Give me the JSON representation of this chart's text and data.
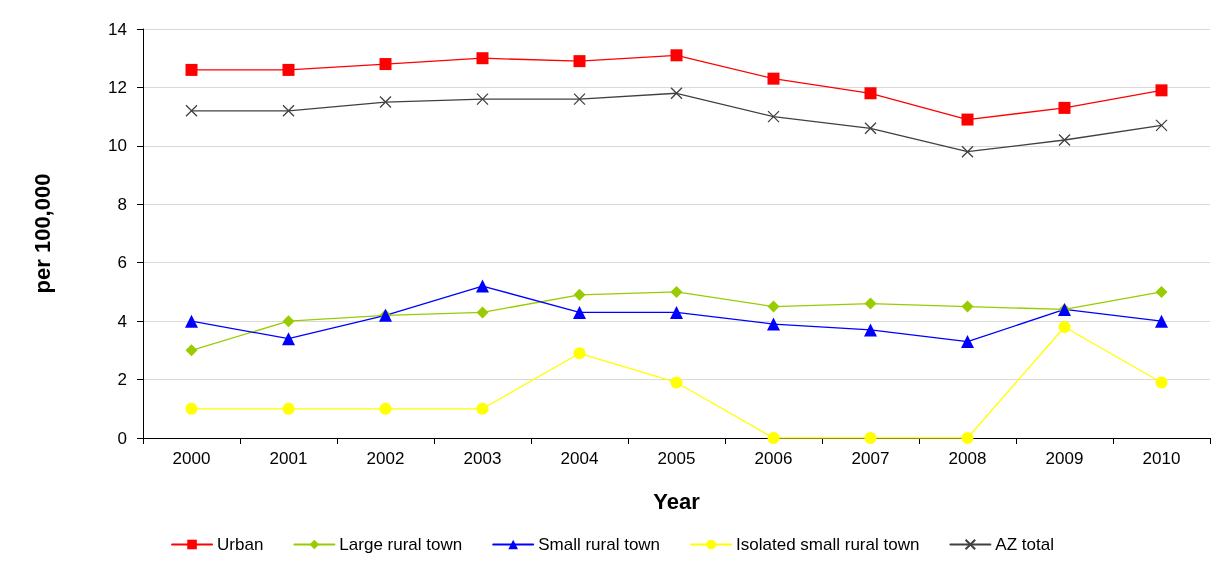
{
  "chart_data": {
    "type": "line",
    "xlabel": "Year",
    "ylabel": "per 100,000",
    "categories": [
      "2000",
      "2001",
      "2002",
      "2003",
      "2004",
      "2005",
      "2006",
      "2007",
      "2008",
      "2009",
      "2010"
    ],
    "ylim": [
      0,
      14
    ],
    "yticks": [
      0,
      2,
      4,
      6,
      8,
      10,
      12,
      14
    ],
    "grid": "y",
    "legend": "bottom",
    "series": [
      {
        "name": "Urban",
        "color": "#ff0000",
        "marker": "square",
        "values": [
          12.6,
          12.6,
          12.8,
          13.0,
          12.9,
          13.1,
          12.3,
          11.8,
          10.9,
          11.3,
          11.9
        ]
      },
      {
        "name": "Large rural town",
        "color": "#99cc00",
        "marker": "diamond",
        "values": [
          3.0,
          4.0,
          4.2,
          4.3,
          4.9,
          5.0,
          4.5,
          4.6,
          4.5,
          4.4,
          5.0
        ]
      },
      {
        "name": "Small rural town",
        "color": "#0000ff",
        "marker": "triangle",
        "values": [
          4.0,
          3.4,
          4.2,
          5.2,
          4.3,
          4.3,
          3.9,
          3.7,
          3.3,
          4.4,
          4.0
        ]
      },
      {
        "name": "Isolated small rural town",
        "color": "#ffff00",
        "marker": "circle",
        "values": [
          1.0,
          1.0,
          1.0,
          1.0,
          2.9,
          1.9,
          0,
          0,
          0,
          3.8,
          1.9
        ]
      },
      {
        "name": "AZ total",
        "color": "#404040",
        "marker": "cross",
        "values": [
          11.2,
          11.2,
          11.5,
          11.6,
          11.6,
          11.8,
          11.0,
          10.6,
          9.8,
          10.2,
          10.7
        ]
      }
    ]
  }
}
